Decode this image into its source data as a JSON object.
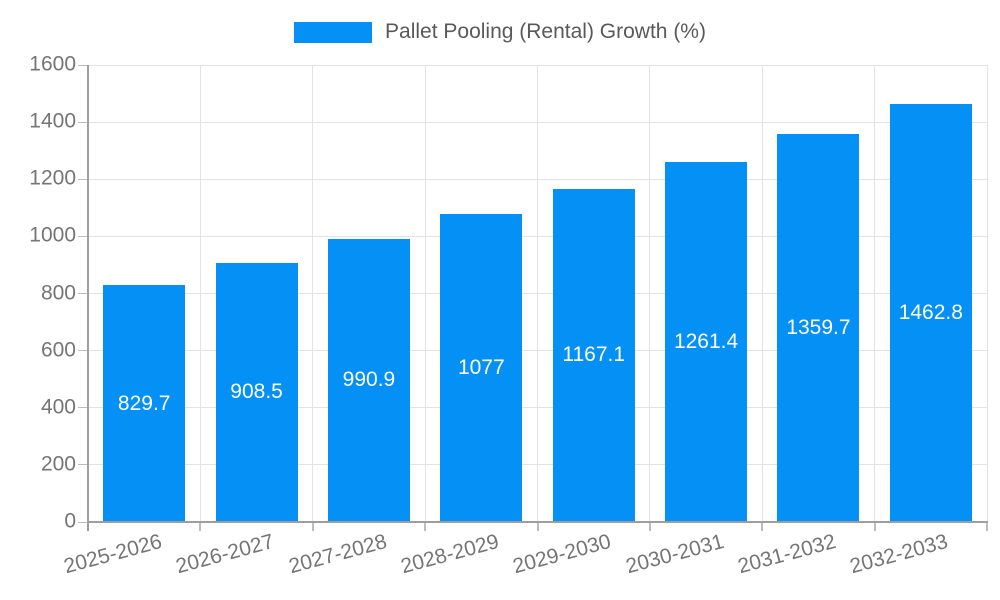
{
  "legend": {
    "series_label": "Pallet Pooling (Rental) Growth (%)"
  },
  "chart_data": {
    "type": "bar",
    "title": "Pallet Pooling (Rental) Growth (%)",
    "xlabel": "",
    "ylabel": "",
    "categories": [
      "2025-2026",
      "2026-2027",
      "2027-2028",
      "2028-2029",
      "2029-2030",
      "2030-2031",
      "2031-2032",
      "2032-2033"
    ],
    "values": [
      829.7,
      908.5,
      990.9,
      1077,
      1167.1,
      1261.4,
      1359.7,
      1462.8
    ],
    "value_labels": [
      "829.7",
      "908.5",
      "990.9",
      "1077",
      "1167.1",
      "1261.4",
      "1359.7",
      "1462.8"
    ],
    "ylim": [
      0,
      1600
    ],
    "y_ticks": [
      0,
      200,
      400,
      600,
      800,
      1000,
      1200,
      1400,
      1600
    ],
    "grid": "horizontal-and-vertical",
    "legend_position": "top-center",
    "colors": {
      "bar": "#0590f5",
      "axis_text": "#757575",
      "legend_text": "#595959",
      "grid_line": "#e3e3e3",
      "axis_line": "#9e9e9e",
      "value_label": "#ffffff",
      "background": "#ffffff"
    }
  }
}
